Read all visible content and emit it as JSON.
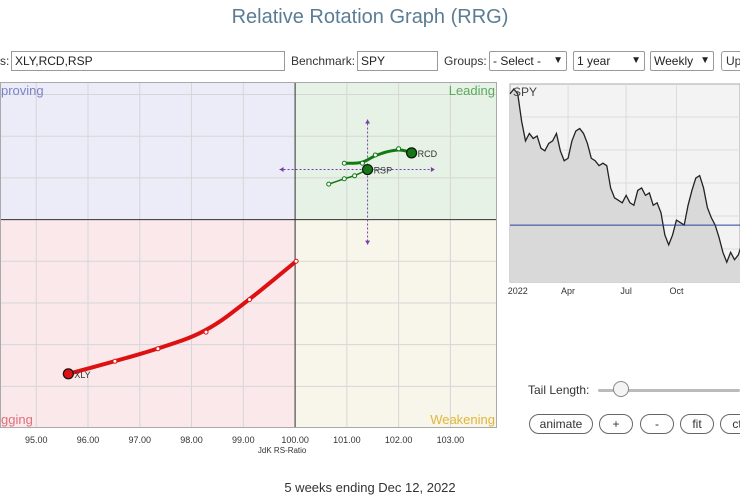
{
  "page": {
    "title": "Relative Rotation Graph (RRG)"
  },
  "toolbar": {
    "symbols_label": "s:",
    "symbols_value": "XLY,RCD,RSP",
    "benchmark_label": "Benchmark:",
    "benchmark_value": "SPY",
    "groups_label": "Groups:",
    "groups_selected": "- Select -",
    "period_selected": "1 year",
    "interval_selected": "Weekly",
    "update_label": "Up"
  },
  "rrg": {
    "quadrants": {
      "improving": "proving",
      "leading": "Leading",
      "lagging": "gging",
      "weakening": "Weakening"
    },
    "x_axis_label": "JdK RS-Ratio",
    "x_ticks": [
      "95.00",
      "96.00",
      "97.00",
      "98.00",
      "99.00",
      "100.00",
      "101.00",
      "102.00",
      "103.00"
    ],
    "colors": {
      "improving_bg": "#ececf8",
      "leading_bg": "#e6f2e6",
      "lagging_bg": "#fbe8ea",
      "weakening_bg": "#f8f6ea",
      "improving_text": "#7b83c7",
      "leading_text": "#5caa5c",
      "lagging_text": "#e0707a",
      "weakening_text": "#e0b63a",
      "XLY": "#dd1111",
      "RCD": "#137a13",
      "RSP": "#137a13"
    }
  },
  "chart_data": {
    "type": "scatter",
    "title": "",
    "xlabel": "JdK RS-Ratio",
    "ylabel": "",
    "xlim": [
      94.3,
      103.9
    ],
    "center": [
      100.0,
      100.0
    ],
    "series": [
      {
        "name": "XLY",
        "x": [
          100.02,
          99.12,
          98.28,
          97.35,
          96.52,
          95.62
        ],
        "y": [
          99.0,
          98.08,
          97.3,
          96.9,
          96.6,
          96.3
        ]
      },
      {
        "name": "RCD",
        "x": [
          100.95,
          101.3,
          101.55,
          102.0,
          102.25
        ],
        "y": [
          101.35,
          101.35,
          101.55,
          101.7,
          101.6
        ]
      },
      {
        "name": "RSP",
        "x": [
          100.65,
          100.95,
          101.15,
          101.4
        ],
        "y": [
          100.85,
          100.98,
          101.05,
          101.2
        ]
      }
    ]
  },
  "spy": {
    "label": "SPY",
    "x_ticks": [
      "2022",
      "Apr",
      "Jul",
      "Oct"
    ],
    "prices": [
      96,
      98,
      96,
      85,
      77,
      80,
      78,
      79,
      74,
      73,
      76,
      77,
      80,
      73,
      69,
      70,
      77,
      81,
      82,
      80,
      76,
      70,
      69,
      67,
      68,
      67,
      58,
      54,
      53,
      52,
      55,
      52,
      51,
      57,
      58,
      55,
      56,
      51,
      52,
      48,
      39,
      35,
      39,
      45,
      44,
      43,
      51,
      57,
      62,
      63,
      58,
      50,
      46,
      43,
      38,
      32,
      28,
      32,
      29,
      31,
      36,
      44,
      46
    ],
    "benchmark_line": 43
  },
  "controls": {
    "tail_length_label": "Tail Length:",
    "animate_label": "animate",
    "plus_label": "+",
    "minus_label": "-",
    "fit_label": "fit",
    "ct_label": "ct"
  },
  "footer": {
    "text": "5 weeks ending Dec 12, 2022"
  }
}
